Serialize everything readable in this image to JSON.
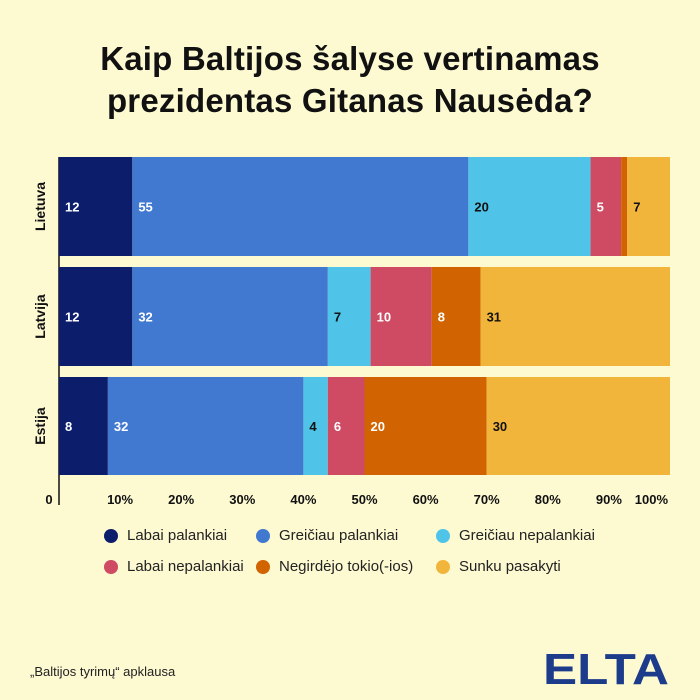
{
  "title_lines": [
    "Kaip Baltijos šalyse vertinamas",
    "prezidentas Gitanas Nausėda?"
  ],
  "chart_data": {
    "type": "bar",
    "orientation": "horizontal",
    "stacked": true,
    "categories": [
      "Lietuva",
      "Latvija",
      "Estija"
    ],
    "series": [
      {
        "name": "Labai palankiai",
        "color": "#0c1e6b",
        "values": [
          12,
          12,
          8
        ],
        "label_color": "#ffffff"
      },
      {
        "name": "Greičiau palankiai",
        "color": "#4178d0",
        "values": [
          55,
          32,
          32
        ],
        "label_color": "#ffffff"
      },
      {
        "name": "Greičiau nepalankiai",
        "color": "#4fc3e8",
        "values": [
          20,
          7,
          4
        ],
        "label_color": "#111111"
      },
      {
        "name": "Labai nepalankiai",
        "color": "#cf4a63",
        "values": [
          5,
          10,
          6
        ],
        "label_color": "#ffffff"
      },
      {
        "name": "Negirdėjo tokio(-ios)",
        "color": "#d16400",
        "values": [
          1,
          8,
          20
        ],
        "label_color": "#ffffff"
      },
      {
        "name": "Sunku pasakyti",
        "color": "#f2b53c",
        "values": [
          7,
          31,
          30
        ],
        "label_color": "#111111"
      }
    ],
    "x_ticks": [
      "0",
      "10%",
      "20%",
      "30%",
      "40%",
      "50%",
      "60%",
      "70%",
      "80%",
      "90%",
      "100%"
    ],
    "xlim": [
      0,
      100
    ],
    "xlabel": "",
    "ylabel": "",
    "grid": false,
    "legend_position": "bottom"
  },
  "source": "„Baltijos tyrimų“ apklausa",
  "logo_text": "ELTA",
  "colors": {
    "background": "#fdfad2",
    "logo": "#1d3b8b"
  }
}
